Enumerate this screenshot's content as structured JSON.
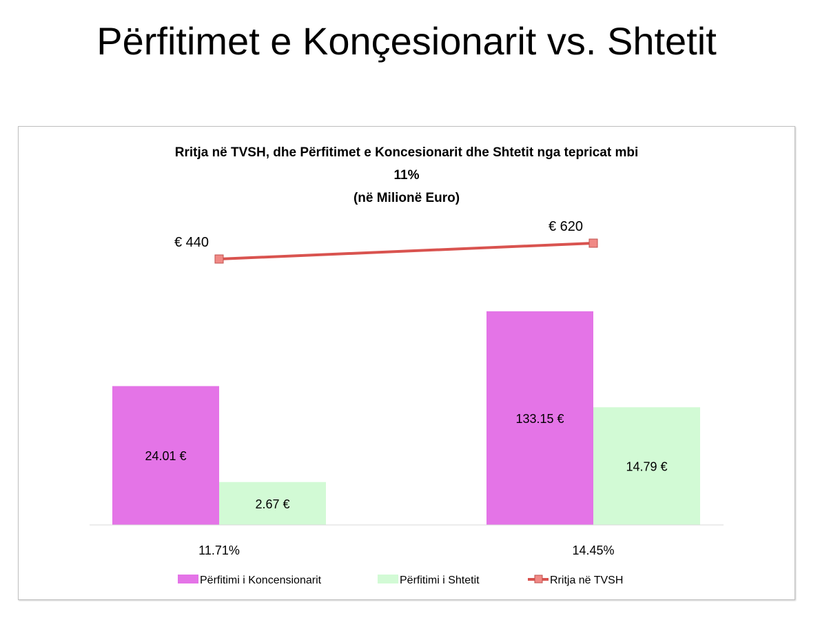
{
  "slide_title": "Përfitimet e Konçesionarit vs. Shtetit",
  "chart_data": {
    "type": "bar",
    "title_lines": [
      "Rritja në TVSH, dhe Përfitimet e Koncesionarit dhe Shtetit nga tepricat mbi",
      "11%",
      "(në Milionë Euro)"
    ],
    "categories": [
      "11.71%",
      "14.45%"
    ],
    "y_scale": "log",
    "series": [
      {
        "name": "Përfitimi i Koncensionarit",
        "type": "bar",
        "color": "#e474e7",
        "values": [
          24.01,
          133.15
        ],
        "labels": [
          "24.01 €",
          "133.15 €"
        ]
      },
      {
        "name": "Përfitimi i Shtetit",
        "type": "bar",
        "color": "#d2fad5",
        "values": [
          2.67,
          14.79
        ],
        "labels": [
          "2.67 €",
          "14.79 €"
        ]
      },
      {
        "name": "Rritja në TVSH",
        "type": "line",
        "color": "#d9534f",
        "values": [
          440,
          620
        ],
        "labels": [
          "€  440",
          "€  620"
        ]
      }
    ],
    "legend": "bottom",
    "grid": false
  }
}
